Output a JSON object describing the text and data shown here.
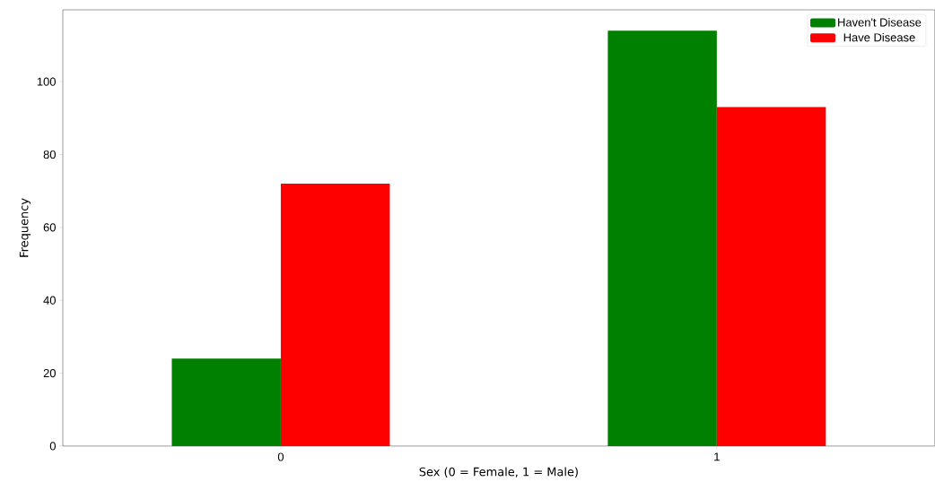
{
  "chart_data": {
    "type": "bar",
    "xlabel": "Sex (0 = Female, 1 = Male)",
    "ylabel": "Frequency",
    "categories": [
      "0",
      "1"
    ],
    "series": [
      {
        "name": "Haven't Disease",
        "color": "#008000",
        "values": [
          24,
          114
        ]
      },
      {
        "name": "Have Disease",
        "color": "#ff0000",
        "values": [
          72,
          93
        ]
      }
    ],
    "ylim": [
      0,
      119.7
    ],
    "yticks": [
      0,
      20,
      40,
      60,
      80,
      100
    ],
    "legend": "top right",
    "grid": false
  }
}
